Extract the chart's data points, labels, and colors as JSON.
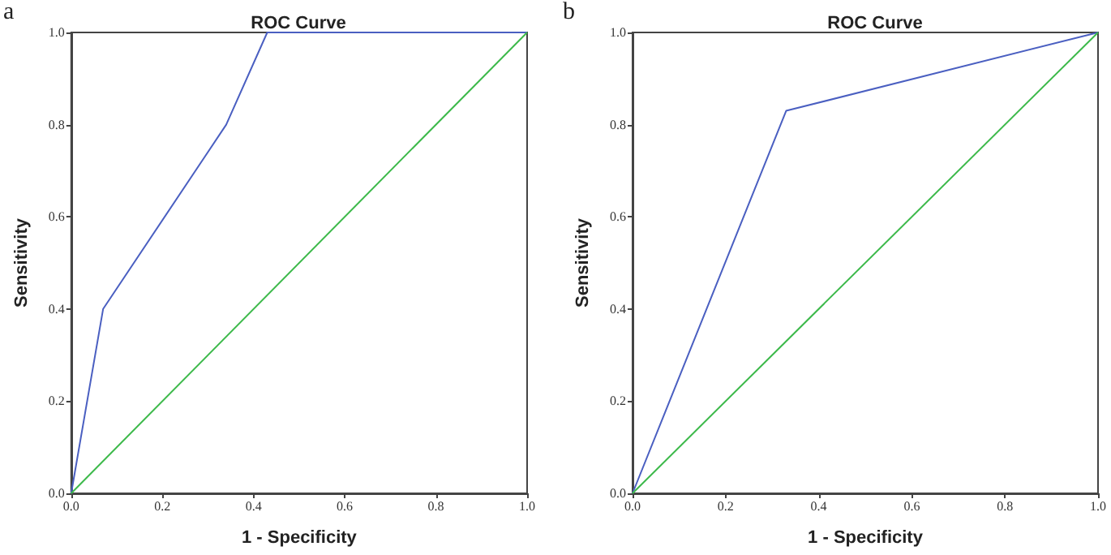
{
  "chart_data": [
    {
      "type": "line",
      "title": "ROC Curve",
      "xlabel": "1 - Specificity",
      "ylabel": "Sensitivity",
      "annotations": [
        "a"
      ],
      "marker": "none",
      "grid": false,
      "xlim": [
        0,
        1
      ],
      "ylim": [
        0,
        1
      ],
      "xticks": [
        {
          "value": 0,
          "label": "0.0"
        },
        {
          "value": 0.2,
          "label": "0.2"
        },
        {
          "value": 0.4,
          "label": "0.4"
        },
        {
          "value": 0.6,
          "label": "0.6"
        },
        {
          "value": 0.8,
          "label": "0.8"
        },
        {
          "value": 1,
          "label": "1.0"
        }
      ],
      "yticks": [
        {
          "value": 0,
          "label": "0.0"
        },
        {
          "value": 0.2,
          "label": "0.2"
        },
        {
          "value": 0.4,
          "label": "0.4"
        },
        {
          "value": 0.6,
          "label": "0.6"
        },
        {
          "value": 0.8,
          "label": "0.8"
        },
        {
          "value": 1,
          "label": "1.0"
        }
      ],
      "series": [
        {
          "color": "#4a5fc1",
          "x": [
            0,
            0.07,
            0.34,
            0.43,
            1
          ],
          "values": [
            0,
            0.4,
            0.8,
            1,
            1
          ]
        },
        {
          "color": "#3cb94a",
          "x": [
            0,
            1
          ],
          "values": [
            0,
            1
          ]
        }
      ]
    },
    {
      "type": "line",
      "title": "ROC Curve",
      "xlabel": "1 - Specificity",
      "ylabel": "Sensitivity",
      "annotations": [
        "b"
      ],
      "marker": "none",
      "grid": false,
      "xlim": [
        0,
        1
      ],
      "ylim": [
        0,
        1
      ],
      "xticks": [
        {
          "value": 0,
          "label": "0.0"
        },
        {
          "value": 0.2,
          "label": "0.2"
        },
        {
          "value": 0.4,
          "label": "0.4"
        },
        {
          "value": 0.6,
          "label": "0.6"
        },
        {
          "value": 0.8,
          "label": "0.8"
        },
        {
          "value": 1,
          "label": "1.0"
        }
      ],
      "yticks": [
        {
          "value": 0,
          "label": "0.0"
        },
        {
          "value": 0.2,
          "label": "0.2"
        },
        {
          "value": 0.4,
          "label": "0.4"
        },
        {
          "value": 0.6,
          "label": "0.6"
        },
        {
          "value": 0.8,
          "label": "0.8"
        },
        {
          "value": 1,
          "label": "1.0"
        }
      ],
      "series": [
        {
          "color": "#4a5fc1",
          "x": [
            0,
            0.33,
            1
          ],
          "values": [
            0,
            0.83,
            1
          ]
        },
        {
          "color": "#3cb94a",
          "x": [
            0,
            1
          ],
          "values": [
            0,
            1
          ]
        }
      ]
    }
  ]
}
